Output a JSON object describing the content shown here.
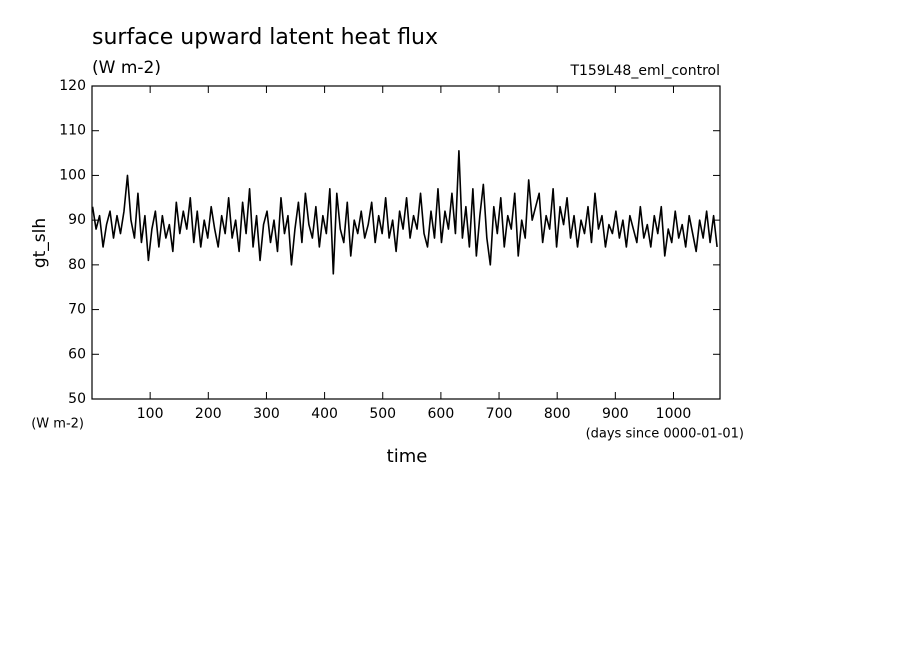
{
  "chart_data": {
    "type": "line",
    "title": "surface upward latent heat flux",
    "subtitle": "(W m-2)",
    "annotation": "T159L48_eml_control",
    "ylabel": "gt_slh",
    "yunit": "(W m-2)",
    "xlabel": "time",
    "xunit": "(days since 0000-01-01)",
    "xlim": [
      0,
      1080
    ],
    "ylim": [
      50,
      120
    ],
    "xticks": [
      100,
      200,
      300,
      400,
      500,
      600,
      700,
      800,
      900,
      1000
    ],
    "yticks": [
      50,
      60,
      70,
      80,
      90,
      100,
      110,
      120
    ],
    "x": [
      1,
      7,
      13,
      19,
      25,
      31,
      37,
      43,
      49,
      55,
      61,
      67,
      73,
      79,
      85,
      91,
      97,
      103,
      109,
      115,
      121,
      127,
      133,
      139,
      145,
      151,
      157,
      163,
      169,
      175,
      181,
      187,
      193,
      199,
      205,
      211,
      217,
      223,
      229,
      235,
      241,
      247,
      253,
      259,
      265,
      271,
      277,
      283,
      289,
      295,
      301,
      307,
      313,
      319,
      325,
      331,
      337,
      343,
      349,
      355,
      361,
      367,
      373,
      379,
      385,
      391,
      397,
      403,
      409,
      415,
      421,
      427,
      433,
      439,
      445,
      451,
      457,
      463,
      469,
      475,
      481,
      487,
      493,
      499,
      505,
      511,
      517,
      523,
      529,
      535,
      541,
      547,
      553,
      559,
      565,
      571,
      577,
      583,
      589,
      595,
      601,
      607,
      613,
      619,
      625,
      631,
      637,
      643,
      649,
      655,
      661,
      667,
      673,
      679,
      685,
      691,
      697,
      703,
      709,
      715,
      721,
      727,
      733,
      739,
      745,
      751,
      757,
      763,
      769,
      775,
      781,
      787,
      793,
      799,
      805,
      811,
      817,
      823,
      829,
      835,
      841,
      847,
      853,
      859,
      865,
      871,
      877,
      883,
      889,
      895,
      901,
      907,
      913,
      919,
      925,
      931,
      937,
      943,
      949,
      955,
      961,
      967,
      973,
      979,
      985,
      991,
      997,
      1003,
      1009,
      1015,
      1021,
      1027,
      1033,
      1039,
      1045,
      1051,
      1057,
      1063,
      1069,
      1075
    ],
    "series": [
      {
        "name": "gt_slh",
        "color": "#000000",
        "values": [
          93,
          88,
          91,
          84,
          89,
          92,
          86,
          91,
          87,
          92,
          100,
          90,
          86,
          96,
          85,
          91,
          81,
          88,
          92,
          84,
          91,
          86,
          89,
          83,
          94,
          87,
          92,
          88,
          95,
          85,
          92,
          84,
          90,
          86,
          93,
          88,
          84,
          91,
          87,
          95,
          86,
          90,
          83,
          94,
          87,
          97,
          84,
          91,
          81,
          89,
          92,
          85,
          90,
          83,
          95,
          87,
          91,
          80,
          88,
          94,
          85,
          96,
          89,
          86,
          93,
          84,
          91,
          87,
          97,
          78,
          96,
          88,
          85,
          94,
          82,
          90,
          87,
          92,
          86,
          89,
          94,
          85,
          91,
          87,
          95,
          86,
          90,
          83,
          92,
          88,
          95,
          86,
          91,
          88,
          96,
          87,
          84,
          92,
          86,
          97,
          85,
          92,
          88,
          96,
          87,
          105.5,
          86,
          93,
          84,
          97,
          82,
          91,
          98,
          86,
          80,
          93,
          87,
          95,
          84,
          91,
          88,
          96,
          82,
          90,
          86,
          99,
          90,
          93,
          96,
          85,
          91,
          88,
          97,
          84,
          93,
          89,
          95,
          86,
          91,
          84,
          90,
          87,
          93,
          85,
          96,
          88,
          91,
          84,
          89,
          87,
          92,
          86,
          90,
          84,
          91,
          88,
          85,
          93,
          86,
          89,
          84,
          91,
          87,
          93,
          82,
          88,
          85,
          92,
          86,
          89,
          84,
          91,
          87,
          83,
          90,
          86,
          92,
          85,
          91,
          84
        ]
      }
    ]
  }
}
